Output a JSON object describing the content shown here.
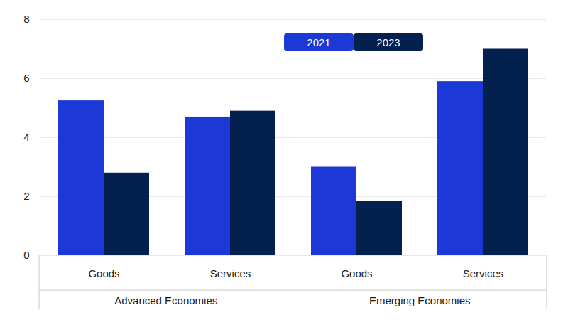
{
  "chart_data": {
    "type": "bar",
    "categories": [
      "Goods",
      "Services",
      "Goods",
      "Services"
    ],
    "groups": [
      "Advanced Economies",
      "Advanced Economies",
      "Emerging Economies",
      "Emerging Economies"
    ],
    "series": [
      {
        "name": "2021",
        "color": "#1c38d6",
        "values": [
          5.25,
          4.7,
          3.0,
          5.9
        ]
      },
      {
        "name": "2023",
        "color": "#03204e",
        "values": [
          2.8,
          4.9,
          1.85,
          7.0
        ]
      }
    ],
    "ylim": [
      0,
      8
    ],
    "yticks": [
      0,
      2,
      4,
      6,
      8
    ],
    "grid": true,
    "legend": "top"
  }
}
